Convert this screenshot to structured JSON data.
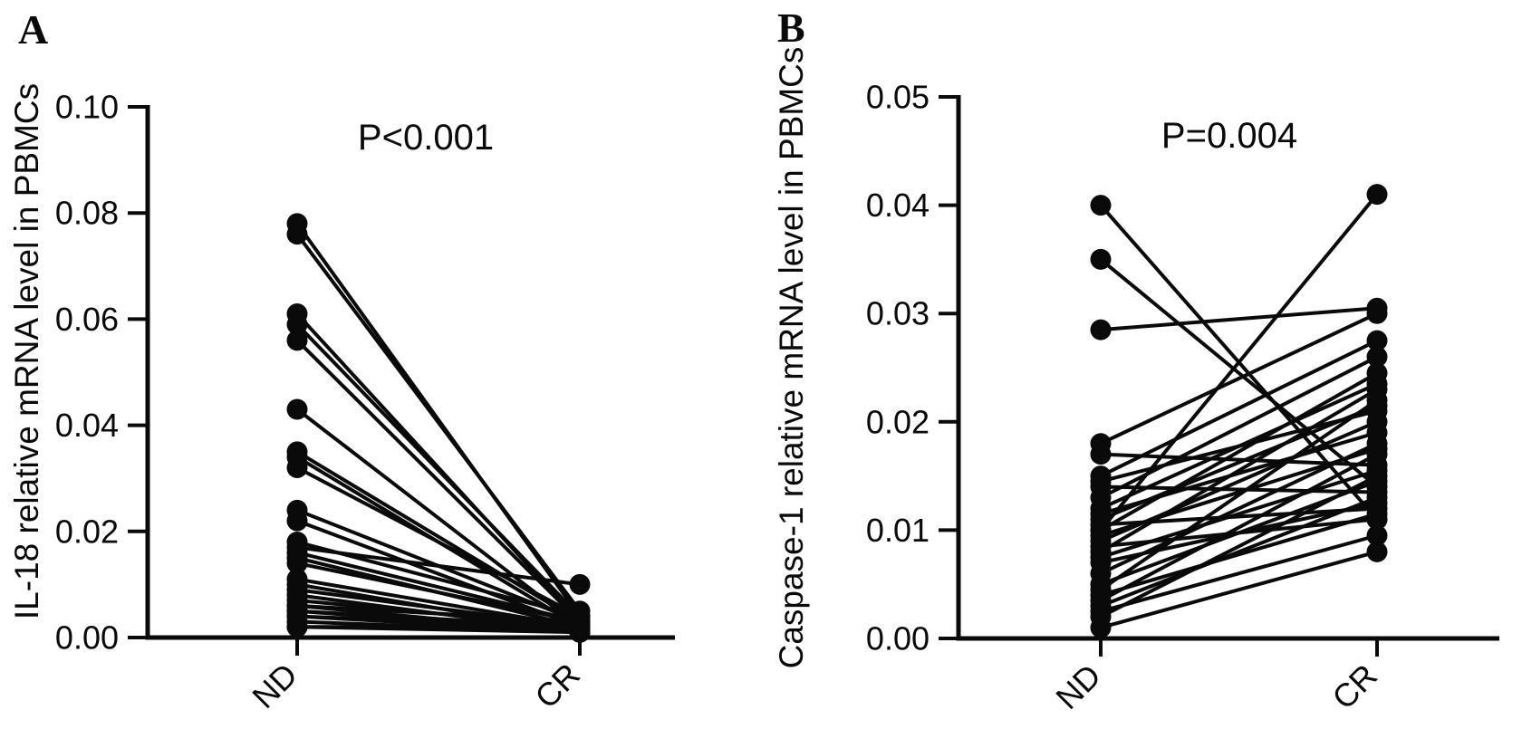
{
  "colors": {
    "ink": "#0a0a0a",
    "background": "#ffffff"
  },
  "chart_data": [
    {
      "type": "line",
      "subtype": "paired-scatter-before-after",
      "panel_label": "A",
      "annotation": "P<0.001",
      "ylabel": "IL-18 relative mRNA level in PBMCs",
      "xlabel": "",
      "categories": [
        "ND",
        "CR"
      ],
      "ylim": [
        0,
        0.1
      ],
      "y_ticks": [
        0,
        0.02,
        0.04,
        0.06,
        0.08,
        0.1
      ],
      "y_tick_labels": [
        "0.00",
        "0.02",
        "0.04",
        "0.06",
        "0.08",
        "0.10"
      ],
      "grid": false,
      "legend": "none",
      "marker": "filled-circle",
      "pairs": [
        [
          0.078,
          0.004
        ],
        [
          0.076,
          0.005
        ],
        [
          0.061,
          0.003
        ],
        [
          0.059,
          0.004
        ],
        [
          0.056,
          0.003
        ],
        [
          0.043,
          0.002
        ],
        [
          0.035,
          0.003
        ],
        [
          0.034,
          0.002
        ],
        [
          0.032,
          0.004
        ],
        [
          0.024,
          0.003
        ],
        [
          0.022,
          0.002
        ],
        [
          0.018,
          0.004
        ],
        [
          0.017,
          0.01
        ],
        [
          0.016,
          0.003
        ],
        [
          0.015,
          0.002
        ],
        [
          0.014,
          0.003
        ],
        [
          0.011,
          0.002
        ],
        [
          0.01,
          0.001
        ],
        [
          0.009,
          0.002
        ],
        [
          0.008,
          0.001
        ],
        [
          0.007,
          0.002
        ],
        [
          0.006,
          0.001
        ],
        [
          0.006,
          0.003
        ],
        [
          0.005,
          0.001
        ],
        [
          0.005,
          0.002
        ],
        [
          0.004,
          0.001
        ],
        [
          0.004,
          0.002
        ],
        [
          0.003,
          0.001
        ],
        [
          0.002,
          0.001
        ],
        [
          0.002,
          0.002
        ]
      ]
    },
    {
      "type": "line",
      "subtype": "paired-scatter-before-after",
      "panel_label": "B",
      "annotation": "P=0.004",
      "ylabel": "Caspase-1 relative mRNA level in PBMCs",
      "xlabel": "",
      "categories": [
        "ND",
        "CR"
      ],
      "ylim": [
        0,
        0.05
      ],
      "y_ticks": [
        0,
        0.01,
        0.02,
        0.03,
        0.04,
        0.05
      ],
      "y_tick_labels": [
        "0.00",
        "0.01",
        "0.02",
        "0.03",
        "0.04",
        "0.05"
      ],
      "grid": false,
      "legend": "none",
      "marker": "filled-circle",
      "pairs": [
        [
          0.04,
          0.011
        ],
        [
          0.035,
          0.014
        ],
        [
          0.0285,
          0.0305
        ],
        [
          0.01,
          0.041
        ],
        [
          0.018,
          0.03
        ],
        [
          0.017,
          0.016
        ],
        [
          0.015,
          0.0275
        ],
        [
          0.0145,
          0.021
        ],
        [
          0.014,
          0.0135
        ],
        [
          0.013,
          0.026
        ],
        [
          0.012,
          0.0235
        ],
        [
          0.0115,
          0.019
        ],
        [
          0.011,
          0.0215
        ],
        [
          0.0105,
          0.012
        ],
        [
          0.01,
          0.0245
        ],
        [
          0.0095,
          0.0175
        ],
        [
          0.009,
          0.02
        ],
        [
          0.0085,
          0.011
        ],
        [
          0.008,
          0.023
        ],
        [
          0.0075,
          0.0155
        ],
        [
          0.007,
          0.0125
        ],
        [
          0.006,
          0.018
        ],
        [
          0.005,
          0.0145
        ],
        [
          0.0045,
          0.022
        ],
        [
          0.004,
          0.0115
        ],
        [
          0.0035,
          0.017
        ],
        [
          0.003,
          0.013
        ],
        [
          0.0025,
          0.0095
        ],
        [
          0.002,
          0.015
        ],
        [
          0.001,
          0.008
        ]
      ]
    }
  ]
}
